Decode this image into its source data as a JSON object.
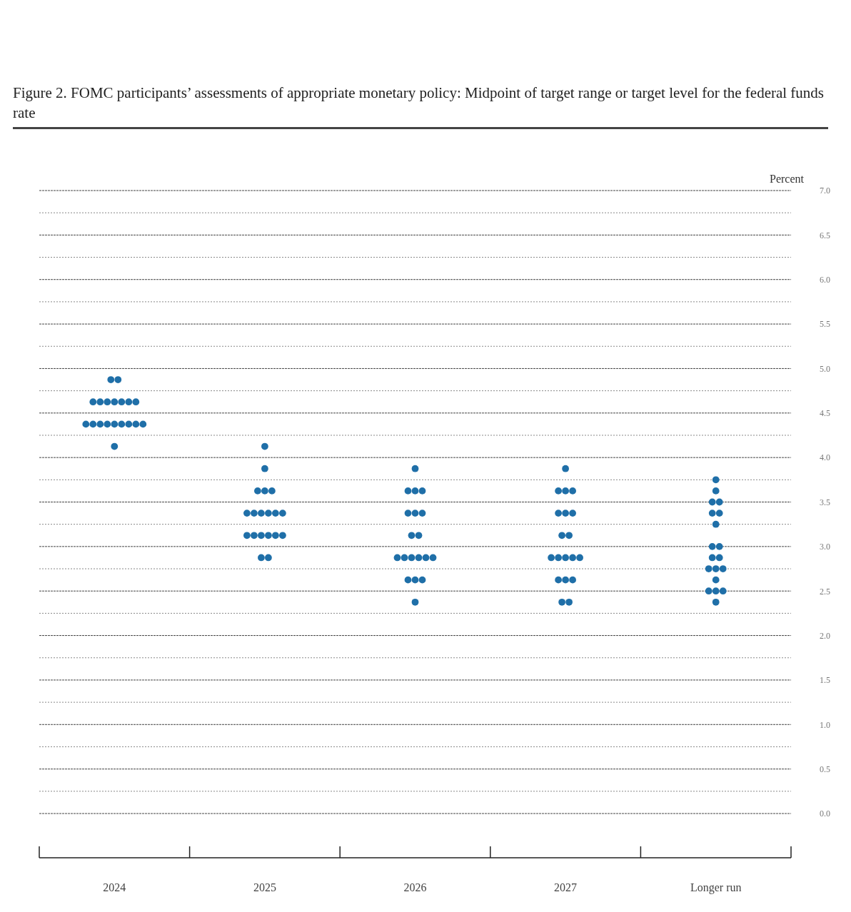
{
  "chart_data": {
    "type": "scatter",
    "title": "Figure 2.  FOMC participants’ assessments of appropriate monetary policy:  Midpoint of target range or target level for the federal funds rate",
    "ylabel": "Percent",
    "categories": [
      "2024",
      "2025",
      "2026",
      "2027",
      "Longer run"
    ],
    "series": [
      {
        "color": "#1f6fa8",
        "values": [
          4.875,
          4.125,
          3.875,
          3.875,
          3.75
        ]
      },
      {
        "color": "#1f6fa8",
        "values": [
          4.875,
          3.875,
          3.625,
          3.625,
          3.625
        ]
      },
      {
        "color": "#1f6fa8",
        "values": [
          4.625,
          3.625,
          3.625,
          3.625,
          3.5
        ]
      },
      {
        "color": "#1f6fa8",
        "values": [
          4.625,
          3.625,
          3.625,
          3.625,
          3.5
        ]
      },
      {
        "color": "#1f6fa8",
        "values": [
          4.625,
          3.625,
          3.375,
          3.375,
          3.375
        ]
      },
      {
        "color": "#1f6fa8",
        "values": [
          4.625,
          3.375,
          3.375,
          3.375,
          3.375
        ]
      },
      {
        "color": "#1f6fa8",
        "values": [
          4.625,
          3.375,
          3.375,
          3.375,
          3.25
        ]
      },
      {
        "color": "#1f6fa8",
        "values": [
          4.625,
          3.375,
          3.125,
          3.125,
          3
        ]
      },
      {
        "color": "#1f6fa8",
        "values": [
          4.625,
          3.375,
          3.125,
          3.125,
          3
        ]
      },
      {
        "color": "#1f6fa8",
        "values": [
          4.375,
          3.375,
          2.875,
          2.875,
          2.875
        ]
      },
      {
        "color": "#1f6fa8",
        "values": [
          4.375,
          3.375,
          2.875,
          2.875,
          2.875
        ]
      },
      {
        "color": "#1f6fa8",
        "values": [
          4.375,
          3.125,
          2.875,
          2.875,
          2.75
        ]
      },
      {
        "color": "#1f6fa8",
        "values": [
          4.375,
          3.125,
          2.875,
          2.875,
          2.75
        ]
      },
      {
        "color": "#1f6fa8",
        "values": [
          4.375,
          3.125,
          2.875,
          2.875,
          2.75
        ]
      },
      {
        "color": "#1f6fa8",
        "values": [
          4.375,
          3.125,
          2.875,
          2.625,
          2.625
        ]
      },
      {
        "color": "#1f6fa8",
        "values": [
          4.375,
          3.125,
          2.625,
          2.625,
          2.5
        ]
      },
      {
        "color": "#1f6fa8",
        "values": [
          4.375,
          3.125,
          2.625,
          2.625,
          2.5
        ]
      },
      {
        "color": "#1f6fa8",
        "values": [
          4.375,
          2.875,
          2.625,
          2.375,
          2.5
        ]
      },
      {
        "color": "#1f6fa8",
        "values": [
          4.125,
          2.875,
          2.375,
          2.375,
          2.375
        ]
      }
    ],
    "ylim": [
      0,
      7
    ],
    "yticks": [
      {
        "value": 0,
        "label": "0.0"
      },
      {
        "value": 0.25,
        "label": null
      },
      {
        "value": 0.5,
        "label": "0.5"
      },
      {
        "value": 0.75,
        "label": null
      },
      {
        "value": 1,
        "label": "1.0"
      },
      {
        "value": 1.25,
        "label": null
      },
      {
        "value": 1.5,
        "label": "1.5"
      },
      {
        "value": 1.75,
        "label": null
      },
      {
        "value": 2,
        "label": "2.0"
      },
      {
        "value": 2.25,
        "label": null
      },
      {
        "value": 2.5,
        "label": "2.5"
      },
      {
        "value": 2.75,
        "label": null
      },
      {
        "value": 3,
        "label": "3.0"
      },
      {
        "value": 3.25,
        "label": null
      },
      {
        "value": 3.5,
        "label": "3.5"
      },
      {
        "value": 3.75,
        "label": null
      },
      {
        "value": 4,
        "label": "4.0"
      },
      {
        "value": 4.25,
        "label": null
      },
      {
        "value": 4.5,
        "label": "4.5"
      },
      {
        "value": 4.75,
        "label": null
      },
      {
        "value": 5,
        "label": "5.0"
      },
      {
        "value": 5.25,
        "label": null
      },
      {
        "value": 5.5,
        "label": "5.5"
      },
      {
        "value": 5.75,
        "label": null
      },
      {
        "value": 6,
        "label": "6.0"
      },
      {
        "value": 6.25,
        "label": null
      },
      {
        "value": 6.5,
        "label": "6.5"
      },
      {
        "value": 6.75,
        "label": null
      },
      {
        "value": 7,
        "label": "7.0"
      }
    ],
    "grid": "y",
    "marker": "circle"
  }
}
